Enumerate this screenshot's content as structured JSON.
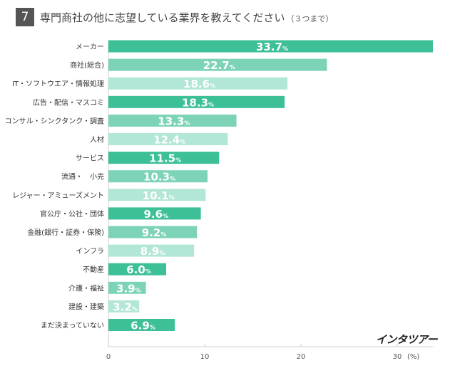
{
  "header": {
    "number": "7",
    "title": "専門商社の他に志望している業界を教えてください",
    "note": "（３つまで）"
  },
  "brand": "インタツアー",
  "chart_data": {
    "type": "bar",
    "orientation": "horizontal",
    "title": "専門商社の他に志望している業界を教えてください（３つまで）",
    "categories": [
      "メーカー",
      "商社(総合)",
      "IT・ソフトウエア・情報処理",
      "広告・配信・マスコミ",
      "コンサル・シンクタンク・調査",
      "人材",
      "サービス",
      "流通・　小売",
      "レジャー・アミューズメント",
      "官公庁・公社・団体",
      "金融(銀行・証券・保険)",
      "インフラ",
      "不動産",
      "介護・福祉",
      "建設・建築",
      "まだ決まっていない"
    ],
    "values": [
      33.7,
      22.7,
      18.6,
      18.3,
      13.3,
      12.4,
      11.5,
      10.3,
      10.1,
      9.6,
      9.2,
      8.9,
      6.0,
      3.9,
      3.2,
      6.9
    ],
    "value_labels": [
      "33.7",
      "22.7",
      "18.6",
      "18.3",
      "13.3",
      "12.4",
      "11.5",
      "10.3",
      "10.1",
      "9.6",
      "9.2",
      "8.9",
      "6.0",
      "3.9",
      "3.2",
      "6.9"
    ],
    "unit": "%",
    "xlim": [
      0,
      33.7
    ],
    "xticks": [
      "0",
      "10",
      "20",
      "30"
    ],
    "xlabel": "(%)",
    "colors": [
      "#3dbf98",
      "#7dd3b8",
      "#b2e6d6"
    ]
  }
}
